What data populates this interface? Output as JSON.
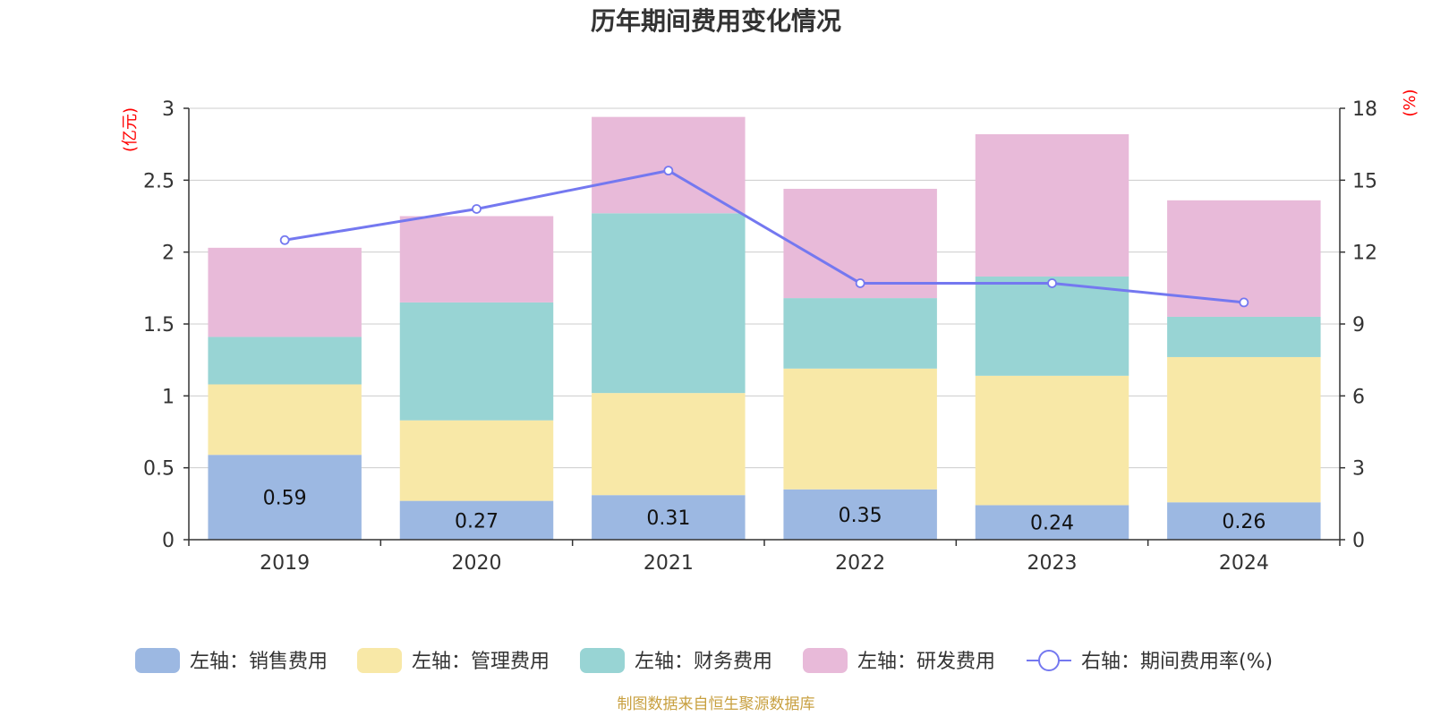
{
  "chart_data": {
    "type": "bar",
    "title": "历年期间费用变化情况",
    "categories": [
      "2019",
      "2020",
      "2021",
      "2022",
      "2023",
      "2024"
    ],
    "left_axis": {
      "unit": "(亿元)",
      "range": [
        0,
        3
      ],
      "ticks": [
        "0",
        "0.5",
        "1",
        "1.5",
        "2",
        "2.5",
        "3"
      ]
    },
    "right_axis": {
      "unit": "(%)",
      "range": [
        0,
        18
      ],
      "ticks": [
        "0",
        "3",
        "6",
        "9",
        "12",
        "15",
        "18"
      ]
    },
    "series": [
      {
        "name": "左轴：销售费用",
        "kind": "bar",
        "stack": true,
        "color": "#9cb8e2",
        "values": [
          0.59,
          0.27,
          0.31,
          0.35,
          0.24,
          0.26
        ],
        "labels": [
          "0.59",
          "0.27",
          "0.31",
          "0.35",
          "0.24",
          "0.26"
        ]
      },
      {
        "name": "左轴：管理费用",
        "kind": "bar",
        "stack": true,
        "color": "#f8e8a7",
        "values": [
          0.49,
          0.56,
          0.71,
          0.84,
          0.9,
          1.01
        ]
      },
      {
        "name": "左轴：财务费用",
        "kind": "bar",
        "stack": true,
        "color": "#98d4d4",
        "values": [
          0.33,
          0.82,
          1.25,
          0.49,
          0.69,
          0.28
        ]
      },
      {
        "name": "左轴：研发费用",
        "kind": "bar",
        "stack": true,
        "color": "#e8bad9",
        "values": [
          0.62,
          0.6,
          0.67,
          0.76,
          0.99,
          0.81
        ]
      },
      {
        "name": "右轴：期间费用率(%)",
        "kind": "line",
        "axis": "right",
        "color": "#7478f0",
        "values": [
          12.5,
          13.8,
          15.4,
          10.7,
          10.7,
          9.9
        ]
      }
    ],
    "grid": true,
    "legend_position": "bottom",
    "source": "制图数据来自恒生聚源数据库"
  },
  "colors": {
    "axis_unit": "#ff0000",
    "source": "#c8a040",
    "grid": "#cccccc",
    "axis": "#333333"
  }
}
